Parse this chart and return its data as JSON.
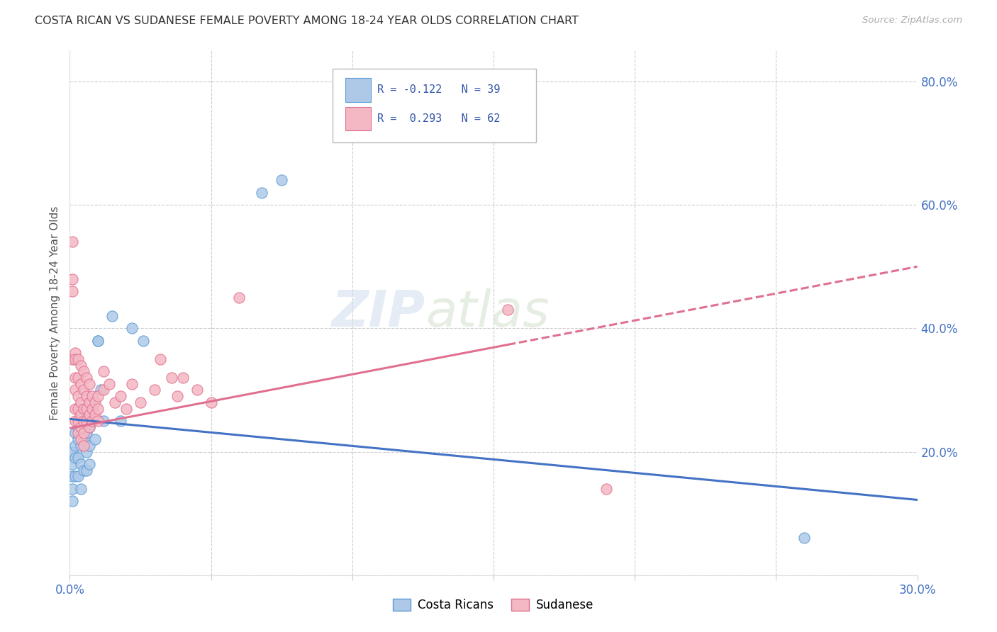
{
  "title": "COSTA RICAN VS SUDANESE FEMALE POVERTY AMONG 18-24 YEAR OLDS CORRELATION CHART",
  "source": "Source: ZipAtlas.com",
  "ylabel": "Female Poverty Among 18-24 Year Olds",
  "xlim": [
    0.0,
    0.3
  ],
  "ylim": [
    0.0,
    0.85
  ],
  "x_ticks": [
    0.0,
    0.05,
    0.1,
    0.15,
    0.2,
    0.25,
    0.3
  ],
  "x_tick_labels": [
    "0.0%",
    "",
    "",
    "",
    "",
    "",
    "30.0%"
  ],
  "y_ticks_right": [
    0.0,
    0.2,
    0.4,
    0.6,
    0.8
  ],
  "y_tick_labels_right": [
    "",
    "20.0%",
    "40.0%",
    "60.0%",
    "80.0%"
  ],
  "grid_color": "#cccccc",
  "background_color": "#ffffff",
  "watermark_zip": "ZIP",
  "watermark_atlas": "atlas",
  "legend_line1": "R = -0.122   N = 39",
  "legend_line2": "R =  0.293   N = 62",
  "color_cr": "#aec9e8",
  "color_su": "#f4b8c4",
  "edge_color_cr": "#5b9bd5",
  "edge_color_su": "#e07090",
  "line_color_cr": "#4472c4",
  "line_color_su": "#e07090",
  "label_cr": "Costa Ricans",
  "label_su": "Sudanese",
  "cr_line_x0": 0.0,
  "cr_line_y0": 0.253,
  "cr_line_x1": 0.3,
  "cr_line_y1": 0.122,
  "su_line_x0": 0.0,
  "su_line_y0": 0.238,
  "su_line_x1_solid": 0.155,
  "su_line_x1": 0.3,
  "su_line_y1": 0.5,
  "cr_x": [
    0.001,
    0.001,
    0.001,
    0.001,
    0.001,
    0.002,
    0.002,
    0.002,
    0.002,
    0.003,
    0.003,
    0.003,
    0.003,
    0.004,
    0.004,
    0.004,
    0.004,
    0.005,
    0.005,
    0.005,
    0.006,
    0.006,
    0.006,
    0.007,
    0.007,
    0.007,
    0.008,
    0.009,
    0.01,
    0.01,
    0.011,
    0.012,
    0.015,
    0.018,
    0.022,
    0.026,
    0.068,
    0.075,
    0.26
  ],
  "cr_y": [
    0.2,
    0.18,
    0.16,
    0.14,
    0.12,
    0.23,
    0.21,
    0.19,
    0.16,
    0.24,
    0.22,
    0.19,
    0.16,
    0.23,
    0.21,
    0.18,
    0.14,
    0.24,
    0.22,
    0.17,
    0.23,
    0.2,
    0.17,
    0.24,
    0.21,
    0.18,
    0.25,
    0.22,
    0.38,
    0.38,
    0.3,
    0.25,
    0.42,
    0.25,
    0.4,
    0.38,
    0.62,
    0.64,
    0.06
  ],
  "su_x": [
    0.001,
    0.001,
    0.001,
    0.001,
    0.002,
    0.002,
    0.002,
    0.002,
    0.002,
    0.002,
    0.003,
    0.003,
    0.003,
    0.003,
    0.003,
    0.003,
    0.004,
    0.004,
    0.004,
    0.004,
    0.004,
    0.004,
    0.005,
    0.005,
    0.005,
    0.005,
    0.005,
    0.005,
    0.006,
    0.006,
    0.006,
    0.006,
    0.007,
    0.007,
    0.007,
    0.007,
    0.008,
    0.008,
    0.008,
    0.009,
    0.009,
    0.01,
    0.01,
    0.01,
    0.012,
    0.012,
    0.014,
    0.016,
    0.018,
    0.02,
    0.022,
    0.025,
    0.03,
    0.032,
    0.036,
    0.038,
    0.04,
    0.045,
    0.05,
    0.06,
    0.155,
    0.19
  ],
  "su_y": [
    0.54,
    0.48,
    0.46,
    0.35,
    0.36,
    0.35,
    0.32,
    0.3,
    0.27,
    0.25,
    0.35,
    0.32,
    0.29,
    0.27,
    0.25,
    0.23,
    0.34,
    0.31,
    0.28,
    0.26,
    0.24,
    0.22,
    0.33,
    0.3,
    0.27,
    0.25,
    0.23,
    0.21,
    0.32,
    0.29,
    0.27,
    0.25,
    0.31,
    0.28,
    0.26,
    0.24,
    0.29,
    0.27,
    0.25,
    0.28,
    0.26,
    0.29,
    0.27,
    0.25,
    0.33,
    0.3,
    0.31,
    0.28,
    0.29,
    0.27,
    0.31,
    0.28,
    0.3,
    0.35,
    0.32,
    0.29,
    0.32,
    0.3,
    0.28,
    0.45,
    0.43,
    0.14
  ]
}
